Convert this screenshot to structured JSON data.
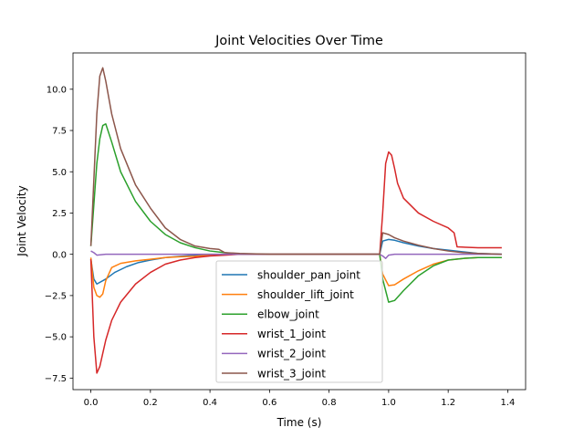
{
  "chart_data": {
    "type": "line",
    "title": "Joint Velocities Over Time",
    "xlabel": "Time (s)",
    "ylabel": "Joint Velocity",
    "xlim": [
      -0.06,
      1.46
    ],
    "ylim": [
      -8.2,
      12.2
    ],
    "xticks": [
      0.0,
      0.2,
      0.4,
      0.6,
      0.8,
      1.0,
      1.2,
      1.4
    ],
    "xtick_labels": [
      "0.0",
      "0.2",
      "0.4",
      "0.6",
      "0.8",
      "1.0",
      "1.2",
      "1.4"
    ],
    "yticks": [
      -7.5,
      -5.0,
      -2.5,
      0.0,
      2.5,
      5.0,
      7.5,
      10.0
    ],
    "ytick_labels": [
      "−7.5",
      "−5.0",
      "−2.5",
      "0.0",
      "2.5",
      "5.0",
      "7.5",
      "10.0"
    ],
    "grid": false,
    "legend_position": "lower-center",
    "series": [
      {
        "name": "shoulder_pan_joint",
        "color": "#1f77b4",
        "x": [
          0.0,
          0.01,
          0.02,
          0.05,
          0.08,
          0.12,
          0.16,
          0.2,
          0.25,
          0.3,
          0.35,
          0.4,
          0.45,
          0.5,
          0.6,
          0.7,
          0.8,
          0.9,
          0.97,
          0.98,
          1.0,
          1.02,
          1.05,
          1.1,
          1.15,
          1.2,
          1.25,
          1.3,
          1.38
        ],
        "y": [
          -0.3,
          -1.5,
          -1.8,
          -1.5,
          -1.1,
          -0.75,
          -0.5,
          -0.35,
          -0.2,
          -0.12,
          -0.06,
          -0.02,
          0.0,
          0.0,
          0.0,
          0.0,
          0.0,
          0.0,
          0.0,
          0.8,
          0.9,
          0.85,
          0.7,
          0.5,
          0.35,
          0.25,
          0.15,
          0.05,
          0.0
        ]
      },
      {
        "name": "shoulder_lift_joint",
        "color": "#ff7f0e",
        "x": [
          0.0,
          0.01,
          0.02,
          0.03,
          0.04,
          0.05,
          0.07,
          0.1,
          0.15,
          0.2,
          0.25,
          0.3,
          0.35,
          0.4,
          0.45,
          0.5,
          0.6,
          0.8,
          0.97,
          0.98,
          1.0,
          1.02,
          1.05,
          1.1,
          1.15,
          1.2,
          1.25,
          1.3,
          1.38
        ],
        "y": [
          -0.2,
          -2.0,
          -2.5,
          -2.6,
          -2.4,
          -1.6,
          -0.8,
          -0.55,
          -0.4,
          -0.3,
          -0.2,
          -0.15,
          -0.12,
          -0.05,
          -0.02,
          0.0,
          0.0,
          0.0,
          0.0,
          -1.2,
          -1.9,
          -1.85,
          -1.5,
          -1.0,
          -0.6,
          -0.35,
          -0.25,
          -0.2,
          -0.2
        ]
      },
      {
        "name": "elbow_joint",
        "color": "#2ca02c",
        "x": [
          0.0,
          0.01,
          0.02,
          0.03,
          0.04,
          0.05,
          0.07,
          0.1,
          0.15,
          0.2,
          0.25,
          0.3,
          0.35,
          0.4,
          0.45,
          0.5,
          0.6,
          0.8,
          0.97,
          0.98,
          1.0,
          1.02,
          1.05,
          1.1,
          1.15,
          1.2,
          1.25,
          1.3,
          1.38
        ],
        "y": [
          0.5,
          3.0,
          5.5,
          7.0,
          7.8,
          7.9,
          6.8,
          5.0,
          3.2,
          2.0,
          1.2,
          0.7,
          0.4,
          0.2,
          0.1,
          0.0,
          0.0,
          0.0,
          0.0,
          -1.5,
          -2.9,
          -2.8,
          -2.2,
          -1.3,
          -0.7,
          -0.35,
          -0.25,
          -0.2,
          -0.2
        ]
      },
      {
        "name": "wrist_1_joint",
        "color": "#d62728",
        "x": [
          0.0,
          0.01,
          0.02,
          0.03,
          0.04,
          0.05,
          0.07,
          0.1,
          0.15,
          0.2,
          0.25,
          0.3,
          0.35,
          0.4,
          0.45,
          0.5,
          0.6,
          0.8,
          0.97,
          0.98,
          0.99,
          1.0,
          1.01,
          1.02,
          1.03,
          1.05,
          1.1,
          1.15,
          1.2,
          1.22,
          1.23,
          1.3,
          1.38
        ],
        "y": [
          -0.3,
          -5.0,
          -7.2,
          -6.8,
          -6.0,
          -5.2,
          -4.0,
          -2.9,
          -1.8,
          -1.1,
          -0.6,
          -0.35,
          -0.2,
          -0.1,
          -0.05,
          0.0,
          0.0,
          0.0,
          0.0,
          2.5,
          5.5,
          6.2,
          6.0,
          5.2,
          4.3,
          3.4,
          2.5,
          2.0,
          1.6,
          1.3,
          0.45,
          0.4,
          0.4
        ]
      },
      {
        "name": "wrist_2_joint",
        "color": "#9467bd",
        "x": [
          0.0,
          0.01,
          0.02,
          0.05,
          0.1,
          0.2,
          0.4,
          0.6,
          0.8,
          0.97,
          0.98,
          0.99,
          1.0,
          1.02,
          1.1,
          1.2,
          1.3,
          1.38
        ],
        "y": [
          0.2,
          0.1,
          -0.05,
          0.0,
          0.0,
          0.0,
          0.0,
          0.0,
          0.0,
          0.0,
          -0.1,
          -0.25,
          -0.05,
          0.0,
          0.0,
          0.0,
          0.0,
          0.0
        ]
      },
      {
        "name": "wrist_3_joint",
        "color": "#8c564b",
        "x": [
          0.0,
          0.01,
          0.02,
          0.03,
          0.04,
          0.05,
          0.07,
          0.1,
          0.15,
          0.2,
          0.25,
          0.3,
          0.35,
          0.4,
          0.43,
          0.45,
          0.5,
          0.6,
          0.8,
          0.97,
          0.98,
          1.0,
          1.02,
          1.05,
          1.1,
          1.15,
          1.2,
          1.25,
          1.3,
          1.38
        ],
        "y": [
          0.5,
          4.5,
          8.5,
          10.8,
          11.3,
          10.5,
          8.5,
          6.4,
          4.2,
          2.8,
          1.6,
          0.9,
          0.5,
          0.35,
          0.3,
          0.1,
          0.05,
          0.0,
          0.0,
          0.0,
          1.3,
          1.2,
          1.0,
          0.8,
          0.55,
          0.35,
          0.2,
          0.1,
          0.05,
          0.0
        ]
      }
    ]
  }
}
